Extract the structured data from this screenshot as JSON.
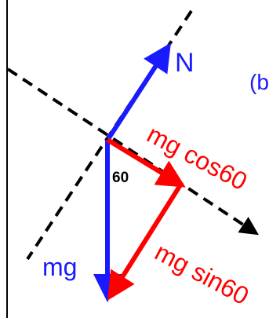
{
  "diagram": {
    "part_label": "(b",
    "normal_force_label": "N",
    "weight_label": "mg",
    "angle_label": "60",
    "cos_component_label": "mg cos60",
    "sin_component_label": "mg sin60",
    "colors": {
      "weight_and_normal": "#1a1aff",
      "components": "#ff0000",
      "axes": "#000000",
      "border": "#000000"
    }
  }
}
